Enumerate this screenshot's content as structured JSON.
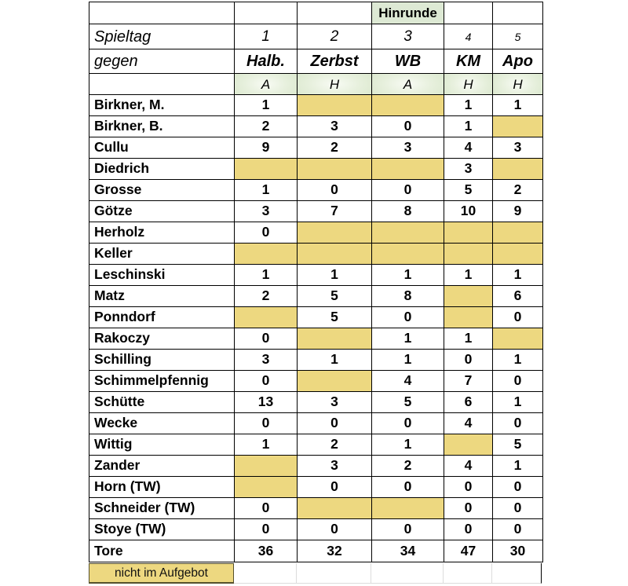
{
  "table": {
    "season_label": "Hinrunde",
    "row_labels": {
      "spieltag": "Spieltag",
      "gegen": "gegen"
    },
    "matchdays": [
      "1",
      "2",
      "3",
      "4",
      "5"
    ],
    "opponents": [
      "Halb.",
      "Zerbst",
      "WB",
      "KM",
      "Apo"
    ],
    "venues": [
      "A",
      "H",
      "A",
      "H",
      "H"
    ],
    "players": [
      {
        "name": "Birkner, M.",
        "goals": [
          "1",
          null,
          null,
          "1",
          "1"
        ]
      },
      {
        "name": "Birkner, B.",
        "goals": [
          "2",
          "3",
          "0",
          "1",
          null
        ]
      },
      {
        "name": "Cullu",
        "goals": [
          "9",
          "2",
          "3",
          "4",
          "3"
        ]
      },
      {
        "name": "Diedrich",
        "goals": [
          null,
          null,
          null,
          "3",
          null
        ]
      },
      {
        "name": "Grosse",
        "goals": [
          "1",
          "0",
          "0",
          "5",
          "2"
        ]
      },
      {
        "name": "Götze",
        "goals": [
          "3",
          "7",
          "8",
          "10",
          "9"
        ]
      },
      {
        "name": "Herholz",
        "goals": [
          "0",
          null,
          null,
          null,
          null
        ]
      },
      {
        "name": "Keller",
        "goals": [
          null,
          null,
          null,
          null,
          null
        ]
      },
      {
        "name": "Leschinski",
        "goals": [
          "1",
          "1",
          "1",
          "1",
          "1"
        ]
      },
      {
        "name": "Matz",
        "goals": [
          "2",
          "5",
          "8",
          null,
          "6"
        ]
      },
      {
        "name": "Ponndorf",
        "goals": [
          null,
          "5",
          "0",
          null,
          "0"
        ]
      },
      {
        "name": "Rakoczy",
        "goals": [
          "0",
          null,
          "1",
          "1",
          null
        ]
      },
      {
        "name": "Schilling",
        "goals": [
          "3",
          "1",
          "1",
          "0",
          "1"
        ]
      },
      {
        "name": "Schimmelpfennig",
        "goals": [
          "0",
          null,
          "4",
          "7",
          "0"
        ]
      },
      {
        "name": "Schütte",
        "goals": [
          "13",
          "3",
          "5",
          "6",
          "1"
        ]
      },
      {
        "name": "Wecke",
        "goals": [
          "0",
          "0",
          "0",
          "4",
          "0"
        ]
      },
      {
        "name": "Wittig",
        "goals": [
          "1",
          "2",
          "1",
          null,
          "5"
        ]
      },
      {
        "name": "Zander",
        "goals": [
          null,
          "3",
          "2",
          "4",
          "1"
        ]
      },
      {
        "name": "Horn (TW)",
        "goals": [
          null,
          "0",
          "0",
          "0",
          "0"
        ]
      },
      {
        "name": "Schneider (TW)",
        "goals": [
          "0",
          null,
          null,
          "0",
          "0"
        ]
      },
      {
        "name": "Stoye (TW)",
        "goals": [
          "0",
          "0",
          "0",
          "0",
          "0"
        ]
      }
    ],
    "totals": {
      "label": "Tore",
      "values": [
        "36",
        "32",
        "34",
        "47",
        "30"
      ]
    }
  },
  "legend": {
    "label": "nicht im Aufgebot"
  },
  "colors": {
    "not_in_squad_fill": "#edd880",
    "season_header_green": "#dde9d4",
    "venue_gradient_edge": "#d6e5c8",
    "grid_line": "#000000",
    "legend_border": "#55502c"
  }
}
